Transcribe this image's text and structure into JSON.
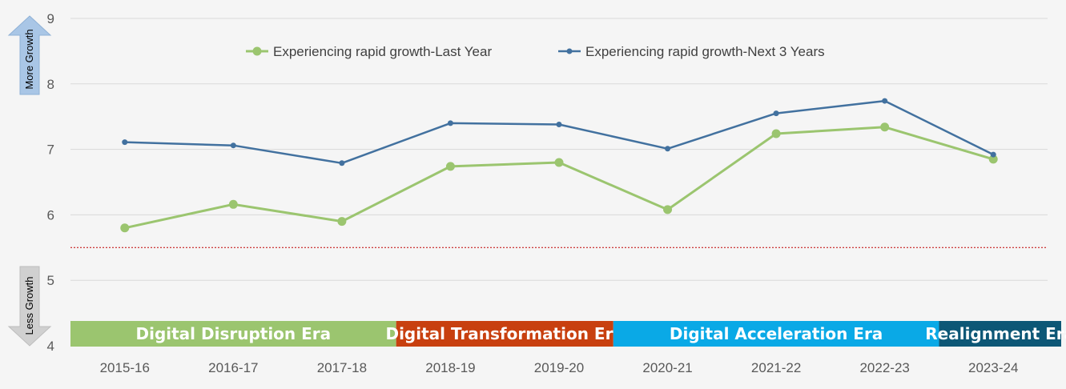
{
  "chart_data": {
    "type": "line",
    "categories": [
      "2015-16",
      "2016-17",
      "2017-18",
      "2018-19",
      "2019-20",
      "2020-21",
      "2021-22",
      "2022-23",
      "2023-24"
    ],
    "ylim": [
      4,
      9
    ],
    "yticks": [
      4,
      5,
      6,
      7,
      8,
      9
    ],
    "grid": true,
    "legend_position": "top-center",
    "reference_line": {
      "value": 5.5,
      "style": "dotted",
      "color": "#c00000"
    },
    "series": [
      {
        "name": "Experiencing rapid growth-Last Year",
        "color": "#9bc56f",
        "marker": "large-circle",
        "values": [
          5.8,
          6.16,
          5.9,
          6.74,
          6.8,
          6.08,
          7.24,
          7.34,
          6.85
        ]
      },
      {
        "name": "Experiencing rapid growth-Next 3 Years",
        "color": "#42719f",
        "marker": "small-circle",
        "values": [
          7.11,
          7.06,
          6.79,
          7.4,
          7.38,
          7.01,
          7.55,
          7.74,
          6.92
        ]
      }
    ],
    "eras": [
      {
        "label": "Digital Disruption Era",
        "color": "#9bc56f",
        "start": "2015-16",
        "end": "2017-18"
      },
      {
        "label": "Digital Transformation Era",
        "color": "#c8400f",
        "start": "2018-19",
        "end": "2019-20"
      },
      {
        "label": "Digital Acceleration Era",
        "color": "#0aa9e6",
        "start": "2020-21",
        "end": "2022-23"
      },
      {
        "label": "Realignment Era",
        "color": "#0d5776",
        "start": "2023-24",
        "end": "2023-24"
      }
    ],
    "arrows": {
      "up_label": "More Growth",
      "down_label": "Less Growth"
    }
  }
}
